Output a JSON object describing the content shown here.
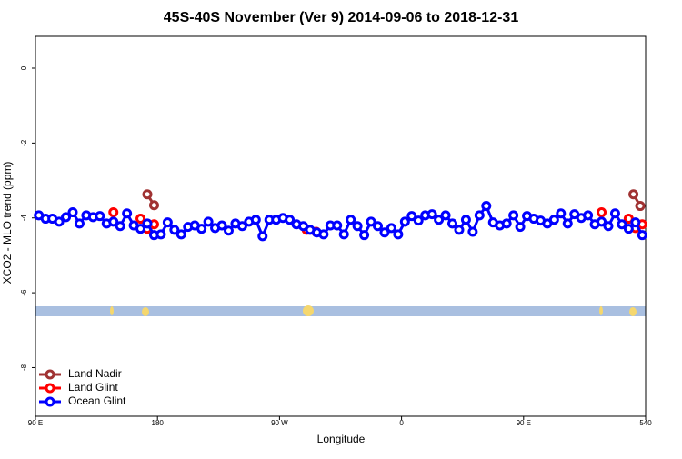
{
  "chart_data": {
    "type": "line",
    "title": "45S-40S November (Ver 9)   2014-09-06 to 2018-12-31",
    "x_label": "Longitude",
    "y_label": "XCO2 - MLO trend (ppm)",
    "xlim": [
      90,
      540
    ],
    "xticks": [
      {
        "value": 90,
        "label": "90 E"
      },
      180,
      {
        "value": 270,
        "label": "90 W"
      },
      {
        "value": 360,
        "label": "0"
      },
      {
        "value": 450,
        "label": "90 E"
      },
      540
    ],
    "ylim": [
      -9.3,
      0.85
    ],
    "yticks": [
      0,
      -2,
      -4,
      -6,
      -8
    ],
    "legend": "bottom-left",
    "series": [
      {
        "name": "Land Nadir",
        "color": "#a03232",
        "x": [
          172.5,
          177.5,
          182.5,
          531,
          536
        ],
        "values": [
          -3.37,
          -3.66,
          null,
          -3.37,
          -3.68
        ]
      },
      {
        "name": "Land Glint",
        "color": "#ff0000",
        "x": [
          147.5,
          152.5,
          167.5,
          172.5,
          177.5,
          182.5,
          290,
          297,
          302,
          507.5,
          512.5,
          527.5,
          532.5,
          537.5
        ],
        "values": [
          -3.85,
          null,
          -4.02,
          -4.29,
          -4.17,
          null,
          -4.32,
          -4.37,
          null,
          -3.85,
          null,
          -4.02,
          -4.27,
          -4.17
        ]
      },
      {
        "name": "Ocean Glint",
        "color": "#0000ff",
        "x": [
          92.5,
          97.5,
          102.5,
          107.5,
          112.5,
          117.5,
          122.5,
          127.5,
          132.5,
          137.5,
          142.5,
          147.5,
          152.5,
          157.5,
          162.5,
          167.5,
          172.5,
          177.5,
          182.5,
          187.5,
          192.5,
          197.5,
          202.5,
          207.5,
          212.5,
          217.5,
          222.5,
          227.5,
          232.5,
          237.5,
          242.5,
          247.5,
          252.5,
          257.5,
          262.5,
          267.5,
          272.5,
          277.5,
          282.5,
          287.5,
          292.5,
          297.5,
          302.5,
          307.5,
          312.5,
          317.5,
          322.5,
          327.5,
          332.5,
          337.5,
          342.5,
          347.5,
          352.5,
          357.5,
          362.5,
          367.5,
          372.5,
          377.5,
          382.5,
          387.5,
          392.5,
          397.5,
          402.5,
          407.5,
          412.5,
          417.5,
          422.5,
          427.5,
          432.5,
          437.5,
          442.5,
          447.5,
          452.5,
          457.5,
          462.5,
          467.5,
          472.5,
          477.5,
          482.5,
          487.5,
          492.5,
          497.5,
          502.5,
          507.5,
          512.5,
          517.5,
          522.5,
          527.5,
          532.5,
          537.5
        ],
        "values": [
          -3.93,
          -4.02,
          -4.02,
          -4.1,
          -3.98,
          -3.85,
          -4.15,
          -3.93,
          -3.98,
          -3.95,
          -4.15,
          -4.1,
          -4.22,
          -3.88,
          -4.2,
          -4.29,
          -4.15,
          -4.46,
          -4.44,
          -4.12,
          -4.32,
          -4.44,
          -4.24,
          -4.2,
          -4.29,
          -4.1,
          -4.27,
          -4.2,
          -4.34,
          -4.15,
          -4.22,
          -4.1,
          -4.05,
          -4.49,
          -4.05,
          -4.05,
          -4.0,
          -4.05,
          -4.17,
          -4.22,
          -4.32,
          -4.39,
          -4.44,
          -4.2,
          -4.2,
          -4.44,
          -4.05,
          -4.22,
          -4.46,
          -4.1,
          -4.22,
          -4.39,
          -4.27,
          -4.44,
          -4.1,
          -3.95,
          -4.07,
          -3.93,
          -3.9,
          -4.05,
          -3.93,
          -4.15,
          -4.32,
          -4.05,
          -4.37,
          -3.93,
          -3.68,
          -4.12,
          -4.2,
          -4.15,
          -3.93,
          -4.24,
          -3.95,
          -4.02,
          -4.07,
          -4.15,
          -4.05,
          -3.88,
          -4.15,
          -3.9,
          -4.0,
          -3.93,
          -4.17,
          -4.1,
          -4.22,
          -3.88,
          -4.17,
          -4.29,
          -4.12,
          -4.46
        ]
      }
    ]
  }
}
